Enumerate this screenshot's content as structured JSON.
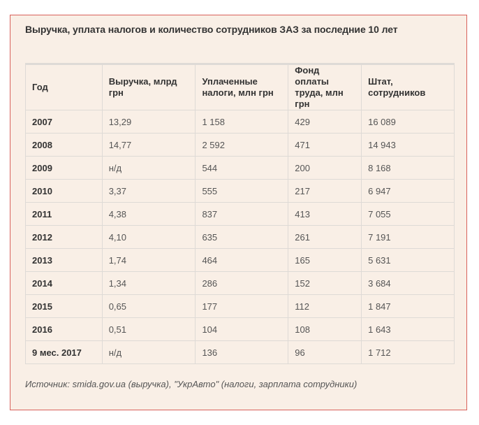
{
  "title": "Выручка, уплата налогов и количество сотрудников ЗАЗ за последние 10 лет",
  "table": {
    "headers": [
      "Год",
      "Выручка, млрд грн",
      "Уплаченные налоги, млн грн",
      "Фонд оплаты труда, млн грн",
      "Штат, сотрудников"
    ],
    "rows": [
      [
        "2007",
        "13,29",
        "1 158",
        "429",
        "16 089"
      ],
      [
        "2008",
        "14,77",
        "2 592",
        "471",
        "14 943"
      ],
      [
        "2009",
        "н/д",
        "544",
        "200",
        "8 168"
      ],
      [
        "2010",
        "3,37",
        "555",
        "217",
        "6 947"
      ],
      [
        "2011",
        "4,38",
        "837",
        "413",
        "7 055"
      ],
      [
        "2012",
        "4,10",
        "635",
        "261",
        "7 191"
      ],
      [
        "2013",
        "1,74",
        "464",
        "165",
        "5 631"
      ],
      [
        "2014",
        "1,34",
        "286",
        "152",
        "3 684"
      ],
      [
        "2015",
        "0,65",
        "177",
        "112",
        "1 847"
      ],
      [
        "2016",
        "0,51",
        "104",
        "108",
        "1 643"
      ],
      [
        "9 мес. 2017",
        "н/д",
        "136",
        "96",
        "1 712"
      ]
    ]
  },
  "source": "Источник: smida.gov.ua (выручка), \"УкрАвто\" (налоги, зарплата сотрудники)",
  "colors": {
    "background": "#f9efe6",
    "border": "#d9605a"
  }
}
